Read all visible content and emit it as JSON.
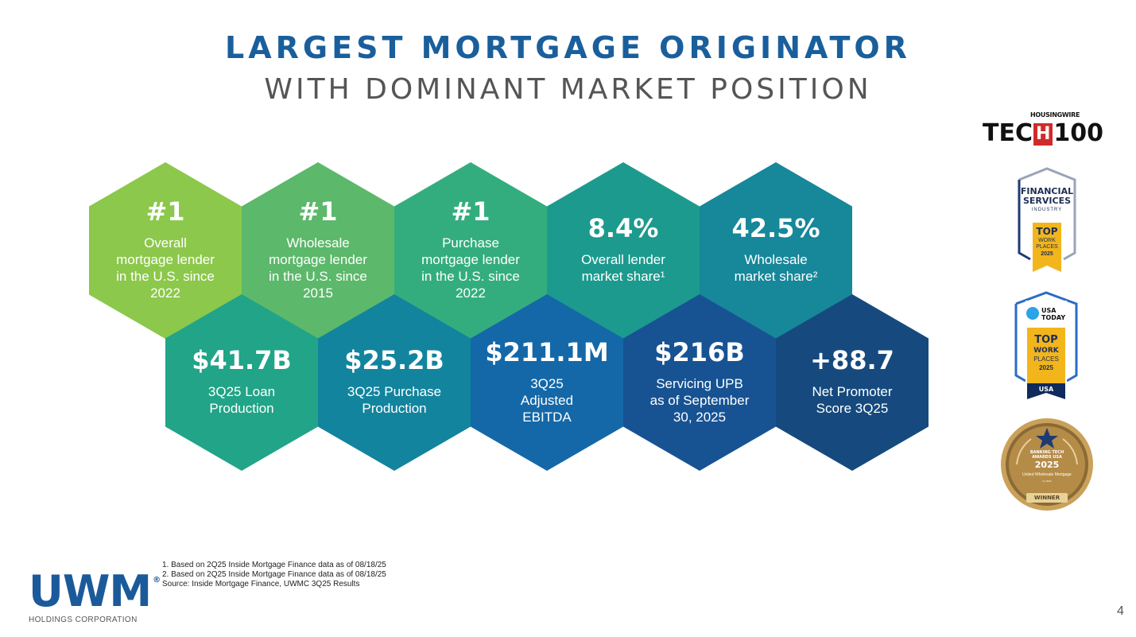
{
  "title": {
    "line1": "LARGEST MORTGAGE ORIGINATOR",
    "line2": "WITH DOMINANT MARKET POSITION"
  },
  "hexes_top": [
    {
      "big": "#1",
      "lines": [
        "Overall",
        "mortgage lender",
        "in the U.S. since",
        "2022"
      ],
      "color": "#8cc84b"
    },
    {
      "big": "#1",
      "lines": [
        "Wholesale",
        "mortgage lender",
        "in the U.S. since",
        "2015"
      ],
      "color": "#5cb86a"
    },
    {
      "big": "#1",
      "lines": [
        "Purchase",
        "mortgage lender",
        "in the U.S. since",
        "2022"
      ],
      "color": "#33ad7e"
    },
    {
      "big": "8.4%",
      "lines": [
        "Overall lender",
        "market share¹"
      ],
      "color": "#1c9a8e"
    },
    {
      "big": "42.5%",
      "lines": [
        "Wholesale",
        "market share²"
      ],
      "color": "#17879a"
    }
  ],
  "hexes_bottom": [
    {
      "big": "$41.7B",
      "lines": [
        "3Q25 Loan",
        "Production"
      ],
      "color": "#21a487"
    },
    {
      "big": "$25.2B",
      "lines": [
        "3Q25 Purchase",
        "Production"
      ],
      "color": "#12849e"
    },
    {
      "big": "$211.1M",
      "lines": [
        "3Q25",
        "Adjusted",
        "EBITDA"
      ],
      "color": "#1468a8"
    },
    {
      "big": "$216B",
      "lines": [
        "Servicing UPB",
        "as of September",
        "30, 2025"
      ],
      "color": "#175393"
    },
    {
      "big": "+88.7",
      "lines": [
        "Net Promoter",
        "Score 3Q25"
      ],
      "color": "#164a7e"
    }
  ],
  "awards": {
    "housingwire": {
      "top": "HOUSINGWIRE",
      "main_left": "TEC",
      "main_mark": "H",
      "main_right": "100"
    },
    "financial": {
      "line1": "FINANCIAL",
      "line2": "SERVICES",
      "line3": "INDUSTRY",
      "top": "TOP",
      "work": "WORK",
      "places": "PLACES",
      "year": "2025"
    },
    "usatoday": {
      "brand1": "USA",
      "brand2": "TODAY",
      "top": "TOP",
      "work": "WORK",
      "places": "PLACES",
      "year": "2025",
      "banner": "USA"
    },
    "banking": {
      "line1": "BANKING TECH",
      "line2": "AWARDS USA",
      "year": "2025",
      "company": "United Wholesale Mortgage",
      "small": "for 2025",
      "banner": "WINNER"
    }
  },
  "logo": {
    "word": "UWM",
    "reg": "®",
    "sub": "HOLDINGS CORPORATION"
  },
  "footnotes": [
    "1. Based on 2Q25 Inside Mortgage Finance data as of 08/18/25",
    "2. Based on 2Q25 Inside Mortgage Finance data as of 08/18/25",
    "Source: Inside Mortgage Finance, UWMC 3Q25 Results"
  ],
  "page_number": "4",
  "colors": {
    "title_blue": "#1a5f9c",
    "title_gray": "#555555",
    "gold": "#f2b51c",
    "navy": "#0f2a5c"
  }
}
